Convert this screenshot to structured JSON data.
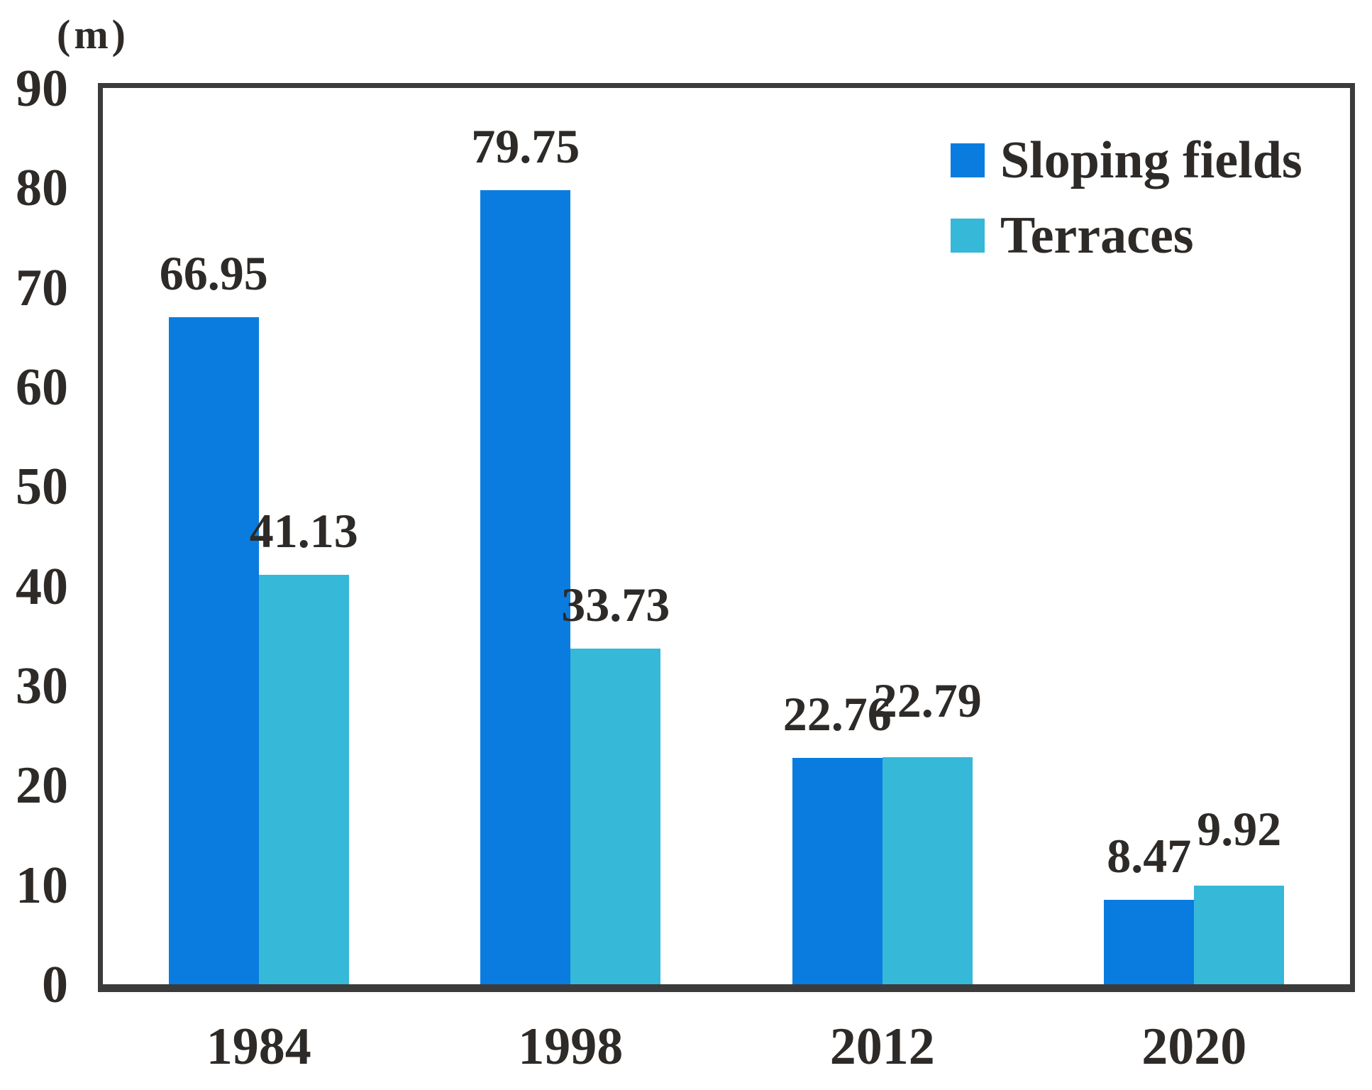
{
  "chart_data": {
    "type": "bar",
    "title": "",
    "y_axis": {
      "unit_label": "(m)",
      "ticks": [
        0,
        10,
        20,
        30,
        40,
        50,
        60,
        70,
        80,
        90
      ],
      "ylim": [
        0,
        90
      ]
    },
    "categories": [
      "1984",
      "1998",
      "2012",
      "2020"
    ],
    "series": [
      {
        "name": "Sloping fields",
        "color": "#0a7ce0",
        "values": [
          66.95,
          79.75,
          22.76,
          8.47
        ]
      },
      {
        "name": "Terraces",
        "color": "#36b8d8",
        "values": [
          41.13,
          33.73,
          22.79,
          9.92
        ]
      }
    ],
    "value_label_decimals": 2,
    "grid": false,
    "legend_position": "top-right",
    "colors": {
      "axis": "#3b3b3b",
      "text": "#2d2a27",
      "background": "#ffffff"
    }
  }
}
